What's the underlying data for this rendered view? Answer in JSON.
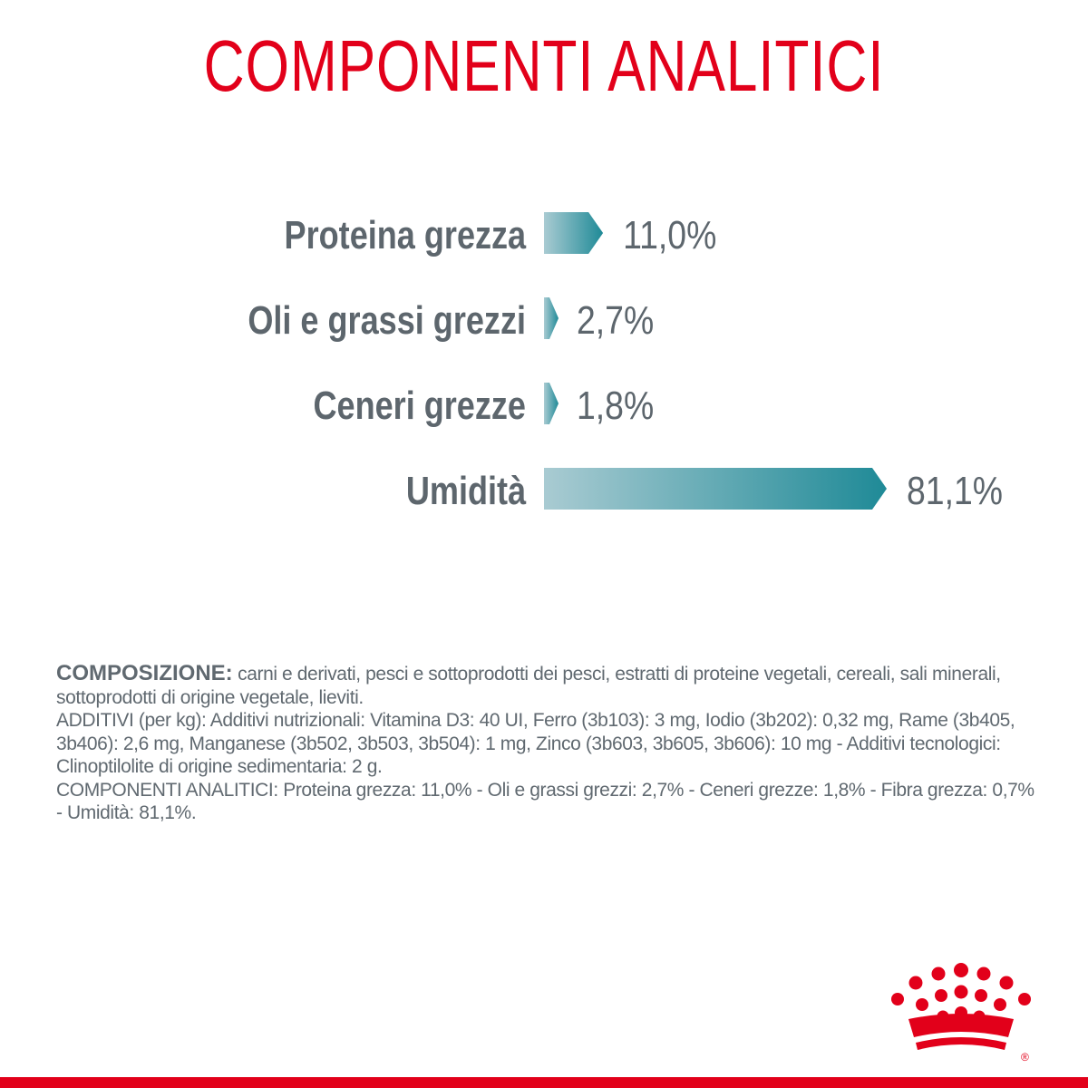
{
  "colors": {
    "brand_red": "#e2001a",
    "label_gray": "#5d666d",
    "bar_start": "#a9cbd2",
    "bar_end": "#1f8a97"
  },
  "title": "COMPONENTI ANALITICI",
  "chart_data": {
    "type": "bar",
    "orientation": "horizontal",
    "categories": [
      "Proteina grezza",
      "Oli e grassi grezzi",
      "Ceneri grezze",
      "Umidità"
    ],
    "values": [
      11.0,
      2.7,
      1.8,
      81.1
    ],
    "value_labels": [
      "11,0%",
      "2,7%",
      "1,8%",
      "81,1%"
    ],
    "unit": "%",
    "title": "COMPONENTI ANALITICI",
    "xlabel": "",
    "ylabel": "",
    "grid": false,
    "legend": "none"
  },
  "composition": {
    "lead": "COMPOSIZIONE:",
    "lead_text": " carni e derivati, pesci e sottoprodotti dei pesci, estratti di proteine vegetali, cereali, sali minerali, sottoprodotti di origine vegetale, lieviti.",
    "additives": "ADDITIVI (per kg): Additivi nutrizionali: Vitamina D3: 40 UI, Ferro (3b103): 3 mg, Iodio (3b202): 0,32 mg, Rame (3b405, 3b406): 2,6 mg, Manganese (3b502, 3b503, 3b504): 1 mg, Zinco (3b603, 3b605, 3b606): 10 mg - Additivi tecnologici: Clinoptilolite di origine sedimentaria: 2 g.",
    "analytical": "COMPONENTI ANALITICI: Proteina grezza: 11,0% - Oli e grassi grezzi: 2,7% - Ceneri grezze: 1,8% - Fibra grezza: 0,7% - Umidità: 81,1%."
  },
  "logo": {
    "icon": "royal-canin-crown-logo-icon",
    "registered_mark": "®"
  }
}
